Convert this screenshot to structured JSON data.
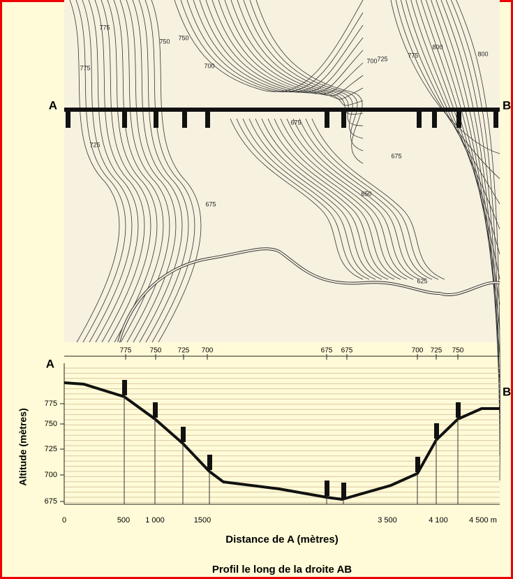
{
  "map": {
    "point_a": "A",
    "point_b": "B",
    "contour_labels": [
      "775",
      "750",
      "725",
      "700",
      "675",
      "675",
      "650",
      "675",
      "625",
      "775",
      "750",
      "725",
      "700",
      "800",
      "800",
      "775"
    ]
  },
  "profile": {
    "top_ticks": [
      "775",
      "750",
      "725",
      "700",
      "675",
      "675",
      "700",
      "725",
      "750"
    ],
    "point_a": "A",
    "point_b": "B",
    "y_axis_label": "Altitude (mètres)",
    "y_ticks": [
      "775",
      "750",
      "725",
      "700",
      "675"
    ],
    "x_ticks": [
      "0",
      "500",
      "1 000",
      "1500",
      "3 500",
      "4 100",
      "4 500 m"
    ],
    "x_axis_label": "Distance de A (mètres)",
    "caption": "Profil le long de la droite AB"
  }
}
